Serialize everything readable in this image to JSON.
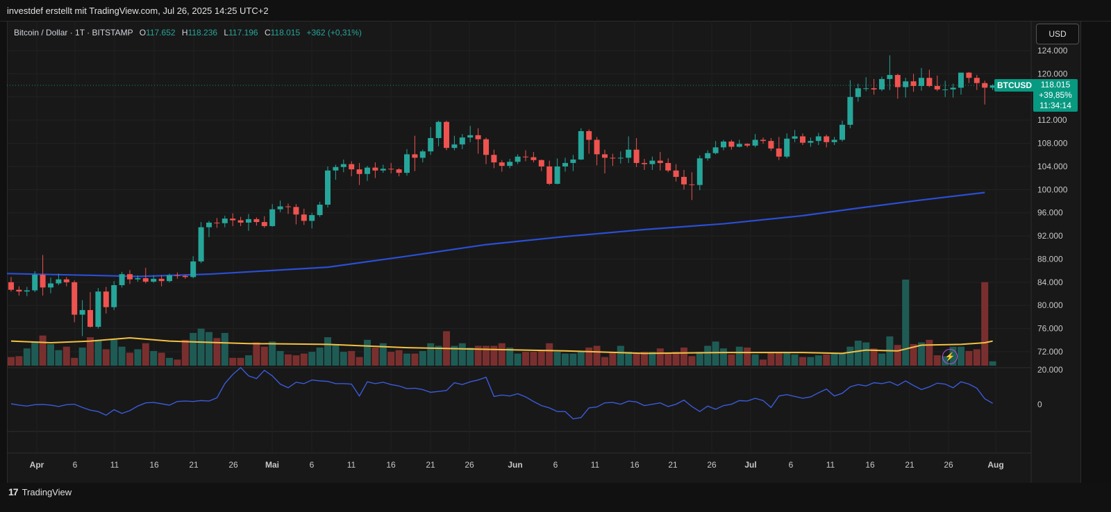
{
  "header": {
    "text": "investdef erstellt mit TradingView.com, Jul 26, 2025 14:25 UTC+2"
  },
  "legend": {
    "symbol": "Bitcoin / Dollar · 1T · BITSTAMP",
    "o_label": "O",
    "o_value": "117.652",
    "h_label": "H",
    "h_value": "118.236",
    "l_label": "L",
    "l_value": "117.196",
    "c_label": "C",
    "c_value": "118.015",
    "change": "+362 (+0,31%)"
  },
  "currency_button": "USD",
  "last_price": {
    "ticker": "BTCUSD",
    "price": "118.015",
    "change_pct": "+39,85%",
    "countdown": "11:34:14"
  },
  "footer": {
    "brand": "TradingView",
    "brand_mark": "17"
  },
  "colors": {
    "up": "#26a69a",
    "down": "#ef5350",
    "ma200": "#2a4fd6",
    "vol_ma": "#f5c242",
    "osc": "#3b5bdb",
    "badge": "#089981"
  },
  "icons": {
    "alert": "lightning-icon"
  },
  "chart_data": {
    "type": "candlestick",
    "price_axis": {
      "ticks": [
        124000,
        120000,
        116000,
        112000,
        108000,
        104000,
        100000,
        96000,
        92000,
        88000,
        84000,
        80000,
        76000,
        72000
      ],
      "tick_labels": [
        "124.000",
        "120.000",
        "112.000",
        "108.000",
        "104.000",
        "100.000",
        "96.000",
        "92.000",
        "88.000",
        "84.000",
        "80.000",
        "76.000",
        "72.000"
      ]
    },
    "oscillator_axis": {
      "tick_labels": [
        "20.000",
        "0"
      ]
    },
    "x_axis": {
      "tick_labels": [
        "Apr",
        "6",
        "11",
        "16",
        "21",
        "26",
        "Mai",
        "6",
        "11",
        "16",
        "21",
        "26",
        "Jun",
        "6",
        "11",
        "16",
        "21",
        "26",
        "Jul",
        "6",
        "11",
        "16",
        "21",
        "26",
        "Aug"
      ]
    },
    "candles": [
      [
        84000,
        84900,
        82400,
        82700
      ],
      [
        82700,
        83300,
        81700,
        82400
      ],
      [
        82400,
        83200,
        81600,
        82600
      ],
      [
        82600,
        85900,
        82300,
        85300
      ],
      [
        85300,
        88700,
        81700,
        83100
      ],
      [
        83100,
        84800,
        82100,
        83800
      ],
      [
        83800,
        85500,
        83500,
        84500
      ],
      [
        84500,
        84900,
        83300,
        84000
      ],
      [
        84000,
        84300,
        77100,
        78400
      ],
      [
        78400,
        80900,
        74700,
        79200
      ],
      [
        79200,
        82300,
        76200,
        76300
      ],
      [
        76300,
        83000,
        76000,
        82400
      ],
      [
        82400,
        83200,
        78600,
        79700
      ],
      [
        79700,
        84200,
        79200,
        83500
      ],
      [
        83500,
        85800,
        83100,
        85400
      ],
      [
        85400,
        86100,
        83700,
        84500
      ],
      [
        84500,
        85200,
        84100,
        84700
      ],
      [
        84700,
        86500,
        83800,
        84100
      ],
      [
        84100,
        85200,
        83900,
        84600
      ],
      [
        84600,
        85200,
        83300,
        84200
      ],
      [
        84200,
        85500,
        84000,
        85200
      ],
      [
        85200,
        85700,
        84600,
        85100
      ],
      [
        85100,
        85300,
        84600,
        84900
      ],
      [
        84900,
        88500,
        84700,
        87600
      ],
      [
        87600,
        94400,
        87300,
        93500
      ],
      [
        93500,
        94600,
        91800,
        94300
      ],
      [
        94300,
        95100,
        93400,
        94200
      ],
      [
        94200,
        95500,
        93500,
        95000
      ],
      [
        95000,
        95900,
        93700,
        94700
      ],
      [
        94700,
        95300,
        93700,
        94300
      ],
      [
        94300,
        95800,
        92900,
        94900
      ],
      [
        94900,
        95200,
        93800,
        94400
      ],
      [
        94400,
        95400,
        93400,
        93700
      ],
      [
        93700,
        97500,
        93600,
        96600
      ],
      [
        96600,
        98100,
        96100,
        97100
      ],
      [
        97100,
        97600,
        95800,
        97000
      ],
      [
        97000,
        97500,
        94000,
        95700
      ],
      [
        95700,
        96700,
        93900,
        94600
      ],
      [
        94600,
        96000,
        93300,
        95600
      ],
      [
        95600,
        97900,
        95300,
        97400
      ],
      [
        97400,
        104000,
        96900,
        103300
      ],
      [
        103300,
        104300,
        101700,
        103900
      ],
      [
        103900,
        105200,
        103000,
        104400
      ],
      [
        104400,
        104900,
        102300,
        103500
      ],
      [
        103500,
        104600,
        100800,
        102700
      ],
      [
        102700,
        104100,
        101500,
        103800
      ],
      [
        103800,
        104700,
        102000,
        103300
      ],
      [
        103300,
        104300,
        102900,
        103600
      ],
      [
        103600,
        104600,
        102800,
        103500
      ],
      [
        103500,
        103700,
        102300,
        102900
      ],
      [
        102900,
        107000,
        102400,
        106100
      ],
      [
        106100,
        109300,
        103200,
        105500
      ],
      [
        105500,
        106900,
        104700,
        106600
      ],
      [
        106600,
        110800,
        106000,
        108900
      ],
      [
        108900,
        111900,
        107500,
        111700
      ],
      [
        111700,
        111900,
        106800,
        107200
      ],
      [
        107200,
        109300,
        106800,
        107800
      ],
      [
        107800,
        109600,
        107000,
        109000
      ],
      [
        109000,
        111000,
        108200,
        109400
      ],
      [
        109400,
        110600,
        106200,
        108700
      ],
      [
        108700,
        109000,
        104400,
        106000
      ],
      [
        106000,
        106900,
        103700,
        104700
      ],
      [
        104700,
        105100,
        103100,
        104100
      ],
      [
        104100,
        105300,
        103700,
        104800
      ],
      [
        104800,
        106100,
        104400,
        105700
      ],
      [
        105700,
        106800,
        104900,
        105600
      ],
      [
        105600,
        106500,
        104700,
        105100
      ],
      [
        105100,
        105200,
        103200,
        104000
      ],
      [
        104000,
        105000,
        100800,
        101000
      ],
      [
        101000,
        105400,
        100900,
        104000
      ],
      [
        104000,
        105500,
        103100,
        104600
      ],
      [
        104600,
        106000,
        103200,
        105200
      ],
      [
        105200,
        110600,
        105100,
        110100
      ],
      [
        110100,
        110400,
        106200,
        108600
      ],
      [
        108600,
        109100,
        104200,
        106100
      ],
      [
        106100,
        106900,
        102800,
        105500
      ],
      [
        105500,
        106200,
        104100,
        105400
      ],
      [
        105400,
        106600,
        104500,
        105500
      ],
      [
        105500,
        109200,
        104600,
        106900
      ],
      [
        106900,
        108900,
        103900,
        104600
      ],
      [
        104600,
        105300,
        103400,
        104400
      ],
      [
        104400,
        105700,
        103400,
        105000
      ],
      [
        105000,
        106500,
        103300,
        104600
      ],
      [
        104600,
        105400,
        103000,
        103300
      ],
      [
        103300,
        104400,
        101400,
        102200
      ],
      [
        102200,
        103400,
        100000,
        100900
      ],
      [
        100900,
        103000,
        98200,
        100800
      ],
      [
        100800,
        105900,
        99900,
        105400
      ],
      [
        105400,
        106800,
        105000,
        106300
      ],
      [
        106300,
        108400,
        106100,
        107300
      ],
      [
        107300,
        108600,
        106800,
        108300
      ],
      [
        108300,
        108600,
        106900,
        107400
      ],
      [
        107400,
        108600,
        107300,
        107900
      ],
      [
        107900,
        108000,
        107300,
        107600
      ],
      [
        107600,
        109600,
        107300,
        108600
      ],
      [
        108600,
        109000,
        107900,
        108400
      ],
      [
        108400,
        108900,
        106700,
        107100
      ],
      [
        107100,
        109100,
        105100,
        105700
      ],
      [
        105700,
        109700,
        105400,
        108800
      ],
      [
        108800,
        110300,
        108200,
        109200
      ],
      [
        109200,
        109700,
        107700,
        108100
      ],
      [
        108100,
        109000,
        107400,
        108400
      ],
      [
        108400,
        109800,
        107700,
        109200
      ],
      [
        109200,
        109500,
        107300,
        108200
      ],
      [
        108200,
        109100,
        107700,
        108600
      ],
      [
        108600,
        111900,
        108300,
        111200
      ],
      [
        111200,
        118900,
        110600,
        116000
      ],
      [
        116000,
        118300,
        115200,
        117500
      ],
      [
        117500,
        119400,
        117000,
        117500
      ],
      [
        117500,
        119100,
        116400,
        117300
      ],
      [
        117300,
        119500,
        117000,
        119100
      ],
      [
        119100,
        123200,
        117200,
        119800
      ],
      [
        119800,
        120000,
        115700,
        117700
      ],
      [
        117700,
        119300,
        115900,
        118700
      ],
      [
        118700,
        120000,
        116900,
        117900
      ],
      [
        117900,
        121000,
        117100,
        119300
      ],
      [
        119300,
        120700,
        117700,
        117900
      ],
      [
        117900,
        119700,
        117000,
        117300
      ],
      [
        117300,
        118800,
        116000,
        117300
      ],
      [
        117300,
        118300,
        115900,
        117600
      ],
      [
        117600,
        120200,
        116400,
        120200
      ],
      [
        120200,
        120300,
        118400,
        119300
      ],
      [
        119300,
        119800,
        117200,
        118400
      ],
      [
        118400,
        118800,
        114700,
        117600
      ],
      [
        117600,
        118200,
        117200,
        118000
      ]
    ],
    "ma200": [
      [
        0,
        85500
      ],
      [
        10,
        85200
      ],
      [
        16,
        85000
      ],
      [
        25,
        85400
      ],
      [
        40,
        86600
      ],
      [
        50,
        88500
      ],
      [
        60,
        90500
      ],
      [
        70,
        91900
      ],
      [
        80,
        93100
      ],
      [
        90,
        94100
      ],
      [
        100,
        95500
      ],
      [
        107,
        96800
      ],
      [
        115,
        98200
      ],
      [
        123,
        99500
      ]
    ],
    "volume": [
      0.1,
      0.11,
      0.2,
      0.28,
      0.35,
      0.25,
      0.18,
      0.22,
      0.09,
      0.21,
      0.33,
      0.3,
      0.19,
      0.3,
      0.22,
      0.15,
      0.19,
      0.26,
      0.17,
      0.15,
      0.09,
      0.07,
      0.3,
      0.38,
      0.43,
      0.39,
      0.32,
      0.38,
      0.09,
      0.09,
      0.12,
      0.27,
      0.22,
      0.28,
      0.17,
      0.13,
      0.12,
      0.14,
      0.16,
      0.21,
      0.33,
      0.25,
      0.16,
      0.17,
      0.1,
      0.3,
      0.21,
      0.26,
      0.16,
      0.18,
      0.14,
      0.14,
      0.17,
      0.26,
      0.23,
      0.4,
      0.23,
      0.26,
      0.21,
      0.23,
      0.23,
      0.23,
      0.26,
      0.21,
      0.14,
      0.16,
      0.16,
      0.17,
      0.26,
      0.16,
      0.14,
      0.14,
      0.17,
      0.21,
      0.23,
      0.1,
      0.16,
      0.23,
      0.16,
      0.14,
      0.16,
      0.16,
      0.2,
      0.14,
      0.16,
      0.21,
      0.11,
      0.16,
      0.23,
      0.28,
      0.2,
      0.13,
      0.22,
      0.21,
      0.13,
      0.07,
      0.15,
      0.15,
      0.16,
      0.13,
      0.1,
      0.1,
      0.12,
      0.13,
      0.15,
      0.14,
      0.22,
      0.29,
      0.27,
      0.2,
      0.14,
      0.34,
      0.24,
      1.0,
      0.25,
      0.27,
      0.3,
      0.12,
      0.11,
      0.22,
      0.22,
      0.17,
      0.19,
      0.97,
      0.05
    ],
    "volume_ma": [
      [
        0,
        0.3
      ],
      [
        5,
        0.28
      ],
      [
        10,
        0.3
      ],
      [
        15,
        0.34
      ],
      [
        20,
        0.3
      ],
      [
        30,
        0.27
      ],
      [
        40,
        0.26
      ],
      [
        50,
        0.22
      ],
      [
        60,
        0.2
      ],
      [
        70,
        0.18
      ],
      [
        80,
        0.15
      ],
      [
        90,
        0.16
      ],
      [
        100,
        0.16
      ],
      [
        105,
        0.15
      ],
      [
        108,
        0.19
      ],
      [
        112,
        0.18
      ],
      [
        115,
        0.25
      ],
      [
        120,
        0.26
      ],
      [
        123,
        0.28
      ],
      [
        124,
        0.3
      ]
    ],
    "oscillator": [
      0.0,
      -0.6,
      -1.0,
      -0.4,
      -0.3,
      -0.6,
      -1.2,
      -0.4,
      -0.2,
      -1.6,
      -2.8,
      -3.4,
      -5.0,
      -2.6,
      -4.2,
      -3.0,
      -1.0,
      0.4,
      0.6,
      0.0,
      -0.6,
      1.0,
      1.2,
      1.0,
      1.4,
      1.2,
      2.6,
      8.8,
      12.8,
      15.8,
      12.2,
      11.0,
      14.6,
      12.2,
      8.6,
      7.0,
      9.4,
      8.8,
      10.4,
      10.0,
      9.8,
      8.8,
      8.8,
      8.6,
      3.4,
      9.6,
      8.8,
      9.4,
      8.4,
      7.8,
      6.6,
      6.8,
      6.2,
      5.0,
      5.4,
      5.8,
      9.2,
      8.4,
      9.6,
      10.4,
      11.6,
      3.2,
      3.8,
      3.4,
      4.4,
      3.0,
      1.0,
      -0.8,
      -1.8,
      -3.4,
      -3.4,
      -6.6,
      -6.0,
      -1.8,
      -1.4,
      0.4,
      0.6,
      -0.2,
      1.2,
      0.8,
      -0.8,
      -0.2,
      0.4,
      -1.2,
      -0.2,
      1.6,
      -1.2,
      -3.4,
      -1.0,
      -2.4,
      -0.8,
      -0.2,
      1.4,
      1.2,
      2.4,
      1.4,
      -1.6,
      3.4,
      4.0,
      3.2,
      2.4,
      3.0,
      4.8,
      6.4,
      3.4,
      4.6,
      7.4,
      8.4,
      7.8,
      9.2,
      8.8,
      9.6,
      8.0,
      10.0,
      8.0,
      6.2,
      7.4,
      9.0,
      8.6,
      7.0,
      9.6,
      8.6,
      6.8,
      2.2,
      0.2
    ]
  }
}
